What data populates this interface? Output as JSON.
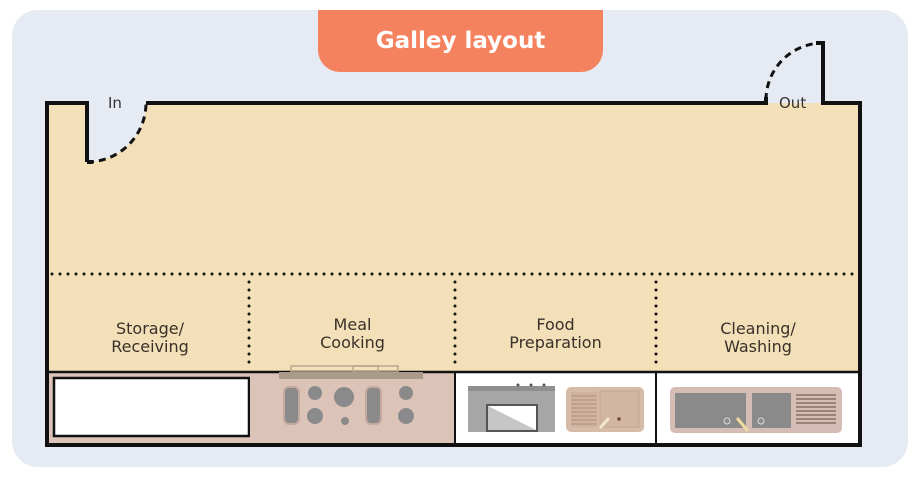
{
  "title": "Galley layout",
  "doors": {
    "in": "In",
    "out": "Out"
  },
  "zones": [
    {
      "label_line1": "Storage/",
      "label_line2": "Receiving"
    },
    {
      "label_line1": "Meal",
      "label_line2": "Cooking"
    },
    {
      "label_line1": "Food",
      "label_line2": "Preparation"
    },
    {
      "label_line1": "Cleaning/",
      "label_line2": "Washing"
    }
  ],
  "colors": {
    "title_bg": "#f5825f",
    "room_fill": "#f3e0b8",
    "background": "#e6ebf3",
    "equipment_pink": "#dcc3b8"
  }
}
